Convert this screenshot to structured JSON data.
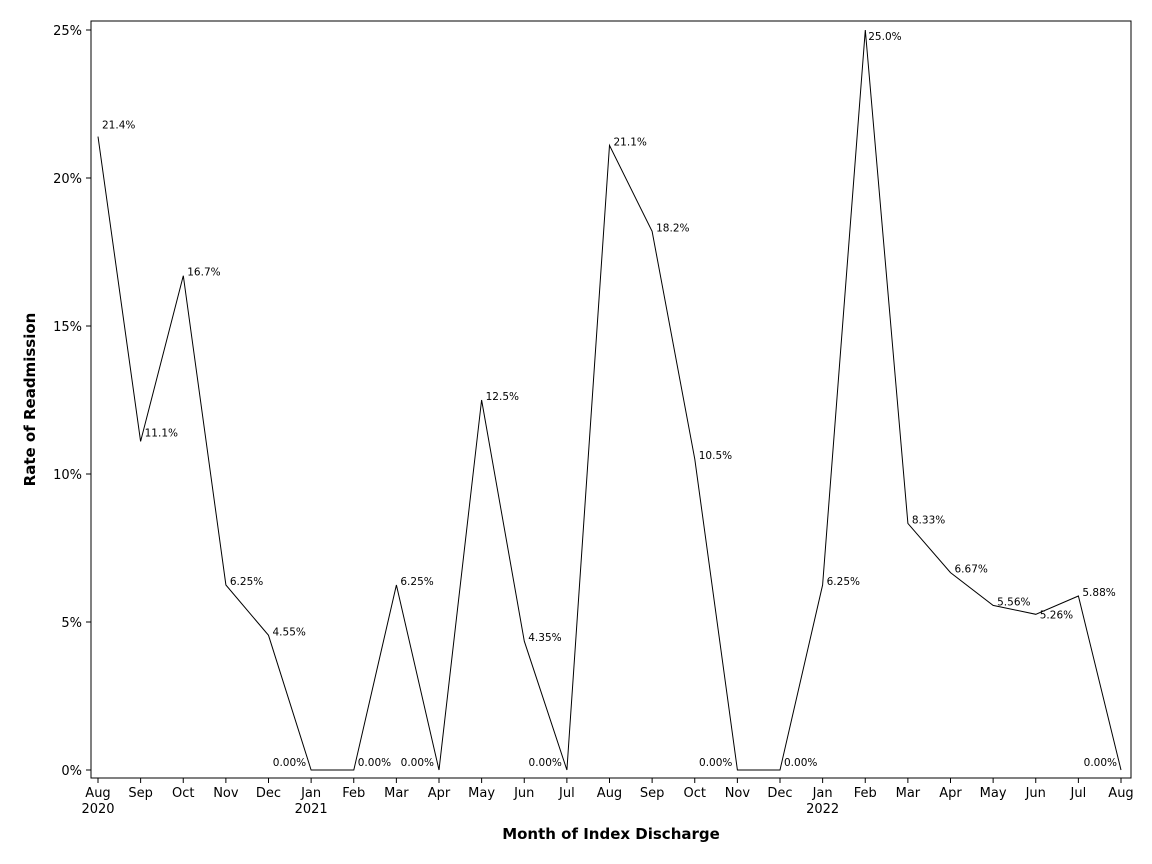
{
  "chart_data": {
    "type": "line",
    "xlabel": "Month of Index Discharge",
    "ylabel": "Rate of Readmission",
    "x": [
      "Aug",
      "Sep",
      "Oct",
      "Nov",
      "Dec",
      "Jan",
      "Feb",
      "Mar",
      "Apr",
      "May",
      "Jun",
      "Jul",
      "Aug",
      "Sep",
      "Oct",
      "Nov",
      "Dec",
      "Jan",
      "Feb",
      "Mar",
      "Apr",
      "May",
      "Jun",
      "Jul",
      "Aug"
    ],
    "year_labels": [
      "2020",
      "",
      "",
      "",
      "",
      "2021",
      "",
      "",
      "",
      "",
      "",
      "",
      "",
      "",
      "",
      "",
      "",
      "2022",
      "",
      "",
      "",
      "",
      "",
      "",
      ""
    ],
    "series": [
      {
        "values": [
          21.4,
          11.1,
          16.7,
          6.25,
          4.55,
          0,
          0,
          6.25,
          0,
          12.5,
          4.35,
          0,
          21.1,
          18.2,
          10.5,
          0,
          0,
          6.25,
          25.0,
          8.33,
          6.67,
          5.56,
          5.26,
          5.88,
          0
        ],
        "labels": [
          "21.4%",
          "11.1%",
          "16.7%",
          "6.25%",
          "4.55%",
          "0.00%",
          "0.00%",
          "6.25%",
          "0.00%",
          "12.5%",
          "4.35%",
          "0.00%",
          "21.1%",
          "18.2%",
          "10.5%",
          "0.00%",
          "0.00%",
          "6.25%",
          "25.0%",
          "8.33%",
          "6.67%",
          "5.56%",
          "5.26%",
          "5.88%",
          "0.00%"
        ]
      }
    ],
    "ylim": [
      0,
      25
    ],
    "yticks": [
      0,
      5,
      10,
      15,
      20,
      25
    ],
    "ytick_labels": [
      "0%",
      "5%",
      "10%",
      "15%",
      "20%",
      "25%"
    ],
    "grid": false,
    "line_color": "#000000"
  }
}
